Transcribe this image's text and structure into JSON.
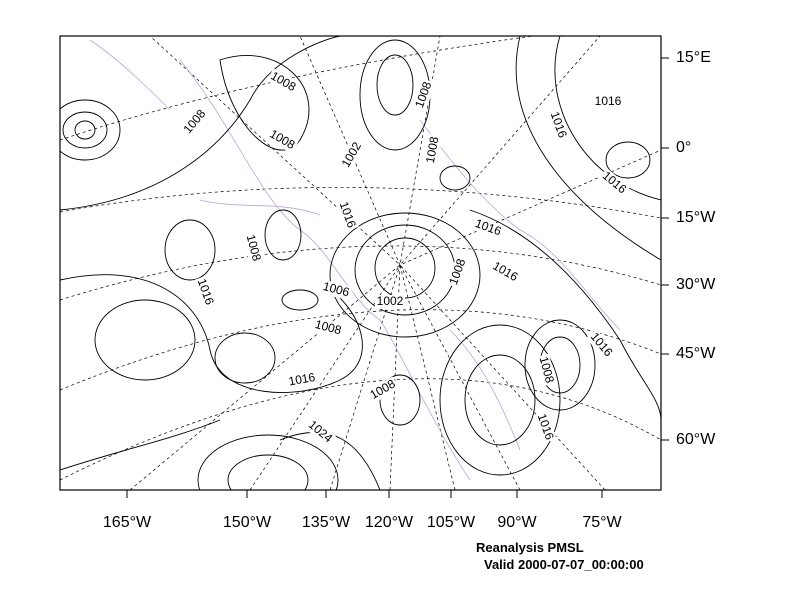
{
  "map": {
    "bottom_labels": [
      "165°W",
      "150°W",
      "135°W",
      "120°W",
      "105°W",
      "90°W",
      "75°W"
    ],
    "right_labels": [
      "15°E",
      "0°",
      "15°W",
      "30°W",
      "45°W",
      "60°W"
    ],
    "contour_labels": [
      1008,
      1008,
      1008,
      1008,
      1002,
      1008,
      1016,
      1016,
      1016,
      1016,
      1016,
      1008,
      1016,
      1008,
      1016,
      1006,
      1002,
      1008,
      1008,
      1016,
      1016,
      1008,
      1016,
      1024
    ],
    "caption": {
      "title": "Reanalysis PMSL",
      "valid": "Valid 2000-07-07_00:00:00"
    }
  }
}
